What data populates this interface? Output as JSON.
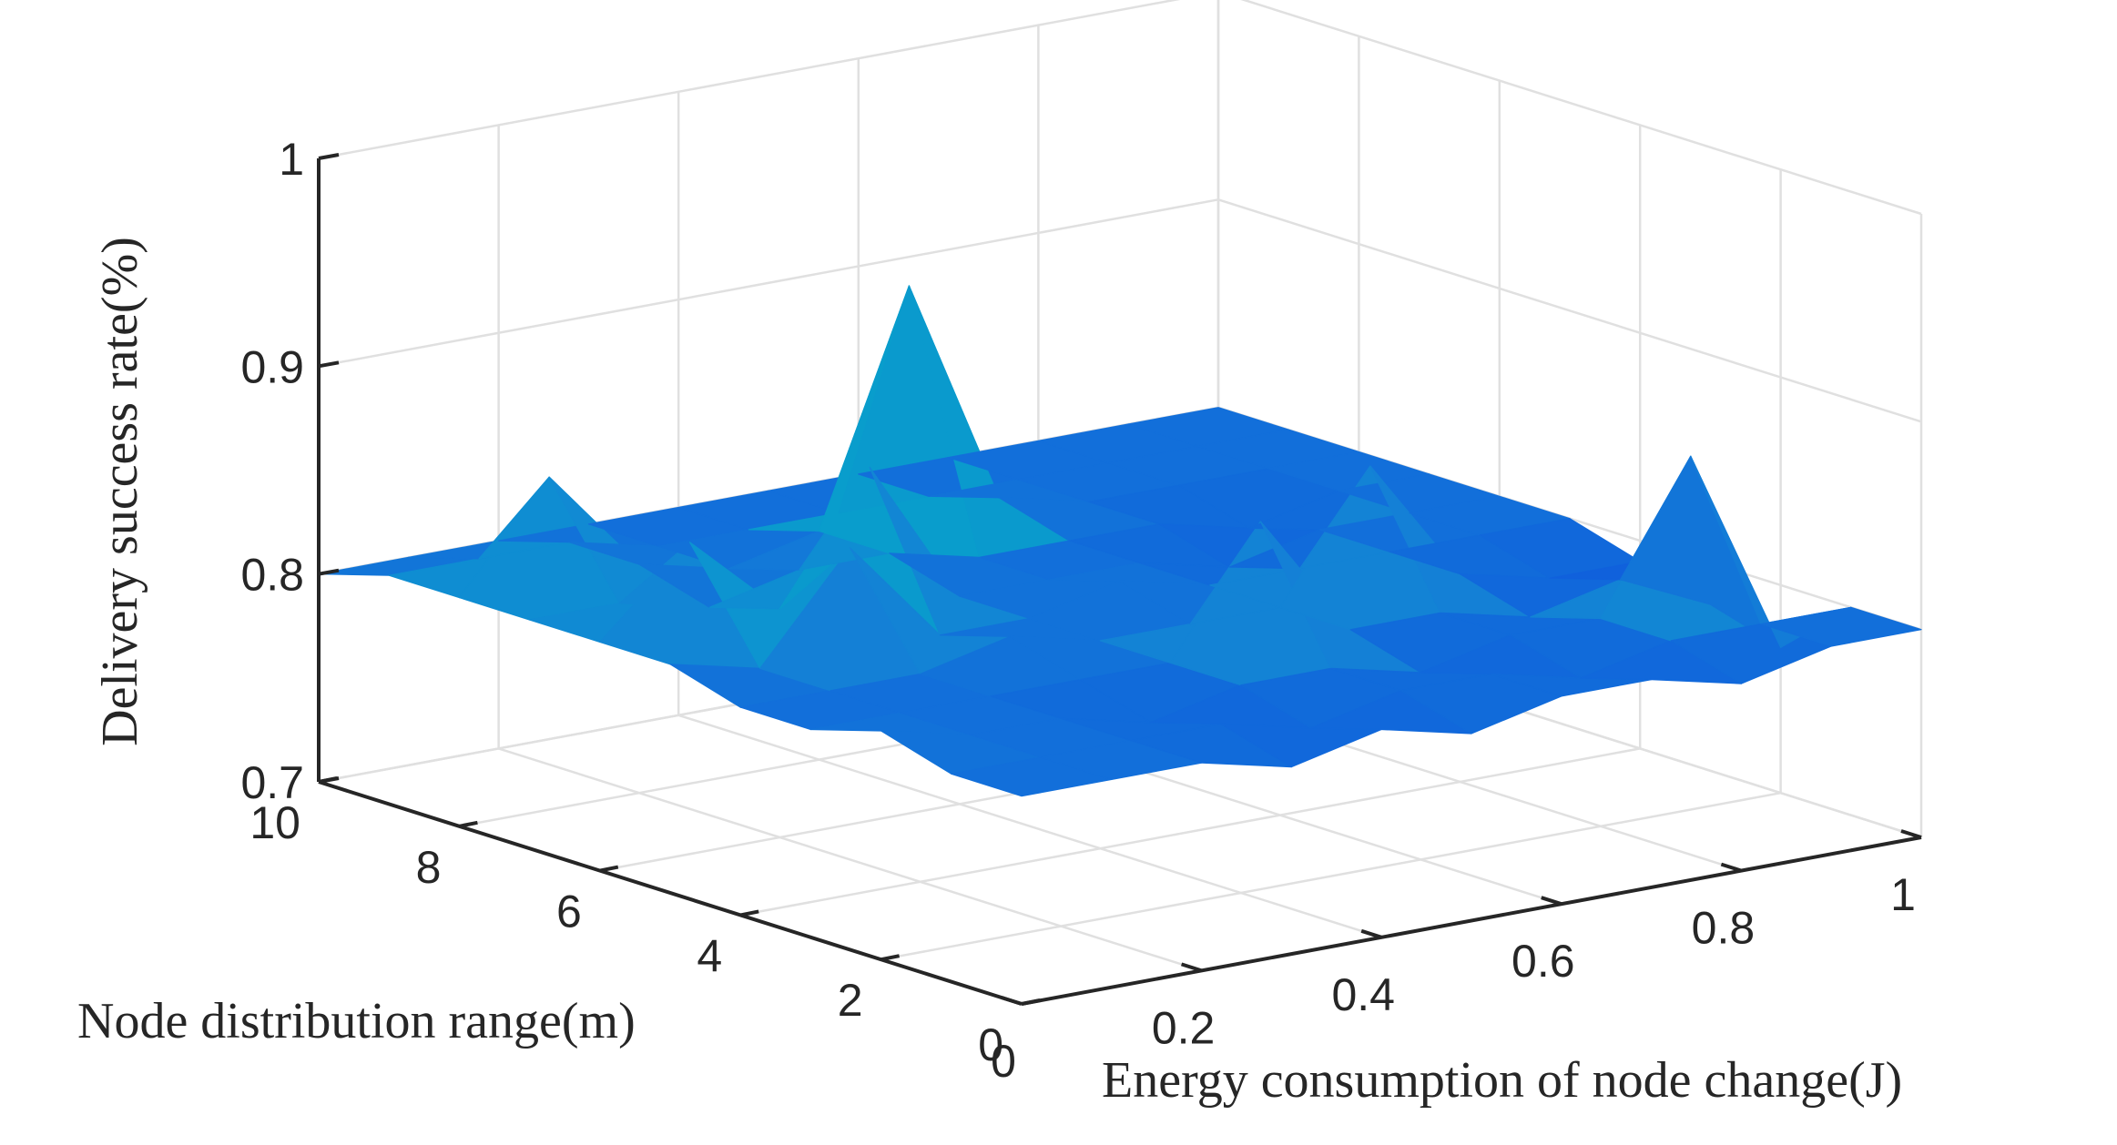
{
  "chart_data": {
    "type": "surface3d",
    "title": "",
    "x_label": "Energy consumption of node change(J)",
    "y_label": "Node distribution range(m)",
    "z_label": "Delivery success rate(%)",
    "x_range": [
      0,
      1
    ],
    "y_range": [
      0,
      10
    ],
    "z_range": [
      0.7,
      1
    ],
    "x_ticks": [
      "0",
      "0.2",
      "0.4",
      "0.6",
      "0.8",
      "1"
    ],
    "y_ticks": [
      "0",
      "2",
      "4",
      "6",
      "8",
      "10"
    ],
    "z_ticks": [
      "0.7",
      "0.8",
      "0.9",
      "1"
    ],
    "colormap": "parula",
    "grid": true,
    "surface": {
      "x": [
        0,
        0.1,
        0.2,
        0.3,
        0.4,
        0.5,
        0.6,
        0.7,
        0.8,
        0.9,
        1.0
      ],
      "y": [
        0,
        1,
        2,
        3,
        4,
        5,
        6,
        7,
        8,
        9,
        10
      ],
      "z": [
        [
          0.8,
          0.8,
          0.8,
          0.79,
          0.8,
          0.79,
          0.8,
          0.8,
          0.79,
          0.8,
          0.8
        ],
        [
          0.8,
          0.8,
          0.8,
          0.8,
          0.79,
          0.8,
          0.8,
          0.79,
          0.8,
          0.8,
          0.8
        ],
        [
          0.81,
          0.8,
          0.8,
          0.79,
          0.8,
          0.8,
          0.79,
          0.8,
          0.8,
          0.87,
          0.77
        ],
        [
          0.8,
          0.8,
          0.8,
          0.8,
          0.8,
          0.86,
          0.8,
          0.8,
          0.79,
          0.8,
          0.78
        ],
        [
          0.8,
          0.8,
          0.8,
          0.81,
          0.8,
          0.8,
          0.8,
          0.86,
          0.8,
          0.79,
          0.79
        ],
        [
          0.81,
          0.8,
          0.85,
          0.8,
          0.8,
          0.81,
          0.8,
          0.8,
          0.8,
          0.8,
          0.8
        ],
        [
          0.81,
          0.85,
          0.81,
          0.87,
          0.8,
          0.8,
          0.8,
          0.79,
          0.8,
          0.8,
          0.8
        ],
        [
          0.81,
          0.81,
          0.8,
          0.81,
          0.81,
          0.8,
          0.8,
          0.8,
          0.79,
          0.8,
          0.8
        ],
        [
          0.81,
          0.86,
          0.81,
          0.8,
          0.81,
          0.92,
          0.81,
          0.8,
          0.8,
          0.8,
          0.8
        ],
        [
          0.81,
          0.81,
          0.81,
          0.8,
          0.8,
          0.8,
          0.8,
          0.8,
          0.8,
          0.8,
          0.8
        ],
        [
          0.8,
          0.8,
          0.8,
          0.8,
          0.8,
          0.8,
          0.8,
          0.8,
          0.8,
          0.8,
          0.8
        ]
      ]
    }
  }
}
